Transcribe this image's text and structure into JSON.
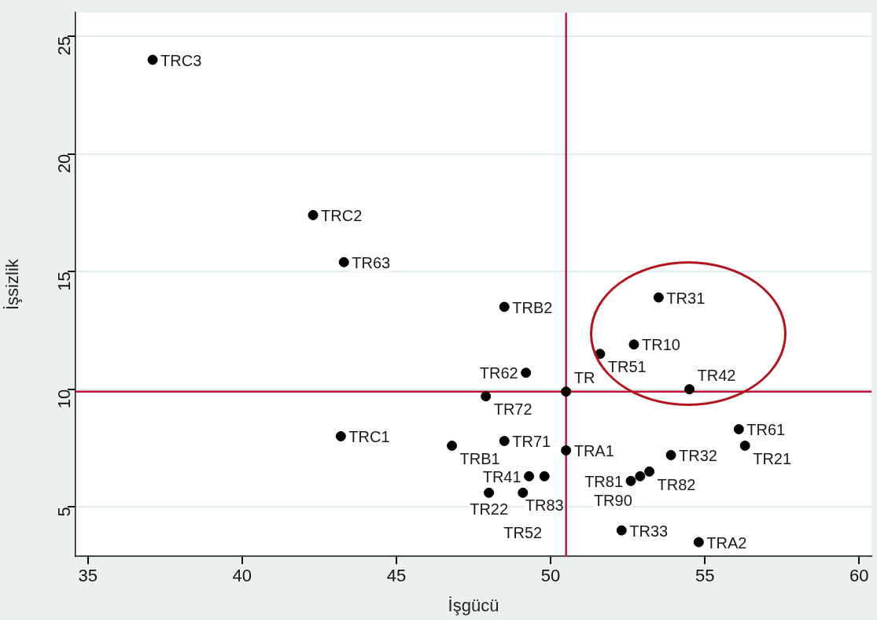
{
  "chart_data": {
    "type": "scatter",
    "xlabel": "İşgücü",
    "ylabel": "İşsizlik",
    "x": [
      37.1,
      42.3,
      43.3,
      48.5,
      53.5,
      52.7,
      51.6,
      49.2,
      54.5,
      50.5,
      47.9,
      56.1,
      43.2,
      46.8,
      48.5,
      50.5,
      56.3,
      53.9,
      53.2,
      52.9,
      52.6,
      49.3,
      49.8,
      48.0,
      49.1,
      52.3,
      54.8
    ],
    "series": [
      {
        "color": "#000000",
        "values": [
          24.0,
          17.4,
          15.4,
          13.5,
          13.9,
          11.9,
          11.5,
          10.7,
          10.0,
          9.9,
          9.7,
          8.3,
          8.0,
          7.6,
          7.8,
          7.4,
          7.6,
          7.2,
          6.5,
          6.3,
          6.1,
          6.3,
          6.3,
          5.6,
          5.6,
          4.0,
          3.5
        ]
      }
    ],
    "annotations": [
      {
        "text": "TRC3",
        "x": 37.1,
        "y": 24.0
      },
      {
        "text": "TRC2",
        "x": 42.3,
        "y": 17.4
      },
      {
        "text": "TR63",
        "x": 43.3,
        "y": 15.4
      },
      {
        "text": "TRB2",
        "x": 48.5,
        "y": 13.5
      },
      {
        "text": "TR31",
        "x": 53.5,
        "y": 13.9
      },
      {
        "text": "TR10",
        "x": 52.7,
        "y": 11.9
      },
      {
        "text": "TR51",
        "x": 51.6,
        "y": 11.5
      },
      {
        "text": "TR62",
        "x": 49.2,
        "y": 10.7
      },
      {
        "text": "TR42",
        "x": 54.5,
        "y": 10.0
      },
      {
        "text": "TR",
        "x": 50.5,
        "y": 9.9
      },
      {
        "text": "TR72",
        "x": 47.9,
        "y": 9.7
      },
      {
        "text": "TR61",
        "x": 56.1,
        "y": 8.3
      },
      {
        "text": "TRC1",
        "x": 43.2,
        "y": 8.0
      },
      {
        "text": "TRB1",
        "x": 46.8,
        "y": 7.6
      },
      {
        "text": "TR71",
        "x": 48.5,
        "y": 7.8
      },
      {
        "text": "TRA1",
        "x": 50.5,
        "y": 7.4
      },
      {
        "text": "TR21",
        "x": 56.3,
        "y": 7.6
      },
      {
        "text": "TR32",
        "x": 53.9,
        "y": 7.2
      },
      {
        "text": "TR82",
        "x": 53.2,
        "y": 6.5
      },
      {
        "text": "TR90",
        "x": 52.9,
        "y": 6.3
      },
      {
        "text": "TR81",
        "x": 52.6,
        "y": 6.1
      },
      {
        "text": "TR41",
        "x": 49.3,
        "y": 6.3
      },
      {
        "text": "TR83",
        "x": 49.8,
        "y": 6.3
      },
      {
        "text": "TR22",
        "x": 48.0,
        "y": 5.6
      },
      {
        "text": "TR52",
        "x": 49.1,
        "y": 5.6
      },
      {
        "text": "TR33",
        "x": 52.3,
        "y": 4.0
      },
      {
        "text": "TRA2",
        "x": 54.8,
        "y": 3.5
      }
    ],
    "xlim": [
      34.6,
      60.4
    ],
    "ylim": [
      2.9,
      26
    ],
    "xticks": [
      35,
      40,
      45,
      50,
      55,
      60
    ],
    "yticks": [
      5,
      10,
      15,
      20,
      25
    ],
    "ref_lines": [
      {
        "axis": "x",
        "value": 50.5,
        "color": "#c0143c"
      },
      {
        "axis": "y",
        "value": 9.9,
        "color": "#c0143c"
      }
    ],
    "grid": "y",
    "legend": false,
    "marker": "circle"
  }
}
